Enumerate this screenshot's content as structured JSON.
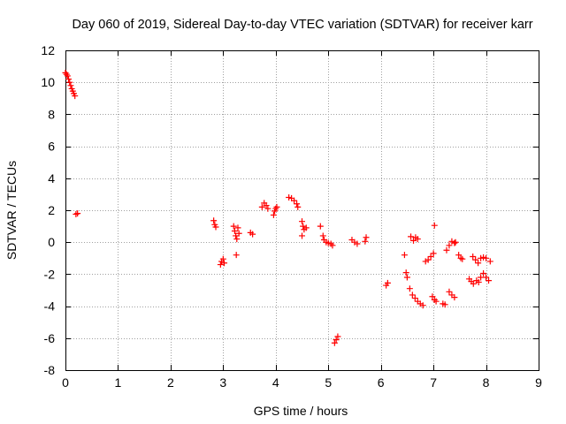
{
  "chart_data": {
    "type": "scatter",
    "title": "Day 060 of 2019, Sidereal Day-to-day VTEC variation (SDTVAR) for receiver karr",
    "xlabel": "GPS time / hours",
    "ylabel": "SDTVAR / TECUs",
    "xlim": [
      0,
      9
    ],
    "ylim": [
      -8,
      12
    ],
    "xticks": [
      0,
      1,
      2,
      3,
      4,
      5,
      6,
      7,
      8,
      9
    ],
    "yticks": [
      -8,
      -6,
      -4,
      -2,
      0,
      2,
      4,
      6,
      8,
      10,
      12
    ],
    "grid": true,
    "marker": "+",
    "colors": {
      "points": "#ff0000",
      "grid": "#a0a0a0",
      "axes": "#000000"
    },
    "series": [
      {
        "name": "SDTVAR",
        "points": [
          [
            0.0,
            10.6
          ],
          [
            0.02,
            10.5
          ],
          [
            0.04,
            10.4
          ],
          [
            0.06,
            10.2
          ],
          [
            0.08,
            10.0
          ],
          [
            0.1,
            9.8
          ],
          [
            0.12,
            9.6
          ],
          [
            0.14,
            9.45
          ],
          [
            0.16,
            9.3
          ],
          [
            0.18,
            9.15
          ],
          [
            0.2,
            1.75
          ],
          [
            0.23,
            1.8
          ],
          [
            2.82,
            1.35
          ],
          [
            2.84,
            1.1
          ],
          [
            2.86,
            0.95
          ],
          [
            2.95,
            -1.4
          ],
          [
            2.97,
            -1.2
          ],
          [
            3.0,
            -1.05
          ],
          [
            3.02,
            -1.3
          ],
          [
            3.2,
            1.0
          ],
          [
            3.22,
            0.7
          ],
          [
            3.24,
            0.4
          ],
          [
            3.26,
            0.2
          ],
          [
            3.28,
            0.9
          ],
          [
            3.3,
            0.55
          ],
          [
            3.25,
            -0.8
          ],
          [
            3.52,
            0.6
          ],
          [
            3.56,
            0.5
          ],
          [
            3.74,
            2.2
          ],
          [
            3.78,
            2.45
          ],
          [
            3.82,
            2.3
          ],
          [
            3.85,
            2.1
          ],
          [
            3.96,
            1.7
          ],
          [
            3.98,
            1.95
          ],
          [
            4.0,
            2.1
          ],
          [
            4.02,
            2.2
          ],
          [
            4.25,
            2.8
          ],
          [
            4.3,
            2.75
          ],
          [
            4.35,
            2.6
          ],
          [
            4.4,
            2.4
          ],
          [
            4.42,
            2.2
          ],
          [
            4.5,
            1.3
          ],
          [
            4.52,
            1.0
          ],
          [
            4.54,
            0.8
          ],
          [
            4.58,
            0.9
          ],
          [
            4.5,
            0.4
          ],
          [
            4.85,
            1.0
          ],
          [
            4.9,
            0.4
          ],
          [
            4.92,
            0.15
          ],
          [
            4.96,
            0.0
          ],
          [
            5.0,
            -0.05
          ],
          [
            5.05,
            -0.1
          ],
          [
            5.08,
            -0.2
          ],
          [
            5.12,
            -6.3
          ],
          [
            5.15,
            -6.1
          ],
          [
            5.18,
            -5.9
          ],
          [
            5.45,
            0.15
          ],
          [
            5.5,
            0.0
          ],
          [
            5.55,
            -0.1
          ],
          [
            5.7,
            0.05
          ],
          [
            5.72,
            0.3
          ],
          [
            6.1,
            -2.7
          ],
          [
            6.13,
            -2.55
          ],
          [
            6.45,
            -0.8
          ],
          [
            6.48,
            -1.9
          ],
          [
            6.5,
            -2.2
          ],
          [
            6.55,
            -2.9
          ],
          [
            6.6,
            -3.3
          ],
          [
            6.65,
            -3.5
          ],
          [
            6.7,
            -3.7
          ],
          [
            6.75,
            -3.85
          ],
          [
            6.8,
            -3.95
          ],
          [
            6.57,
            0.35
          ],
          [
            6.62,
            0.1
          ],
          [
            6.66,
            0.3
          ],
          [
            6.7,
            0.2
          ],
          [
            6.85,
            -1.2
          ],
          [
            6.9,
            -1.1
          ],
          [
            6.95,
            -0.9
          ],
          [
            7.0,
            -0.7
          ],
          [
            7.02,
            1.05
          ],
          [
            6.98,
            -3.4
          ],
          [
            7.02,
            -3.6
          ],
          [
            7.05,
            -3.7
          ],
          [
            7.18,
            -3.85
          ],
          [
            7.22,
            -3.9
          ],
          [
            7.25,
            -0.5
          ],
          [
            7.3,
            -0.2
          ],
          [
            7.35,
            0.05
          ],
          [
            7.4,
            -0.05
          ],
          [
            7.42,
            0.0
          ],
          [
            7.3,
            -3.1
          ],
          [
            7.35,
            -3.3
          ],
          [
            7.4,
            -3.45
          ],
          [
            7.48,
            -0.8
          ],
          [
            7.52,
            -1.0
          ],
          [
            7.55,
            -1.05
          ],
          [
            7.68,
            -2.3
          ],
          [
            7.72,
            -2.45
          ],
          [
            7.76,
            -2.6
          ],
          [
            7.75,
            -0.9
          ],
          [
            7.8,
            -1.1
          ],
          [
            7.85,
            -1.3
          ],
          [
            7.9,
            -1.0
          ],
          [
            7.95,
            -0.95
          ],
          [
            8.0,
            -1.0
          ],
          [
            7.82,
            -2.4
          ],
          [
            7.86,
            -2.5
          ],
          [
            7.9,
            -2.2
          ],
          [
            7.95,
            -1.95
          ],
          [
            8.0,
            -2.2
          ],
          [
            8.05,
            -2.4
          ],
          [
            8.08,
            -1.2
          ]
        ]
      }
    ]
  }
}
